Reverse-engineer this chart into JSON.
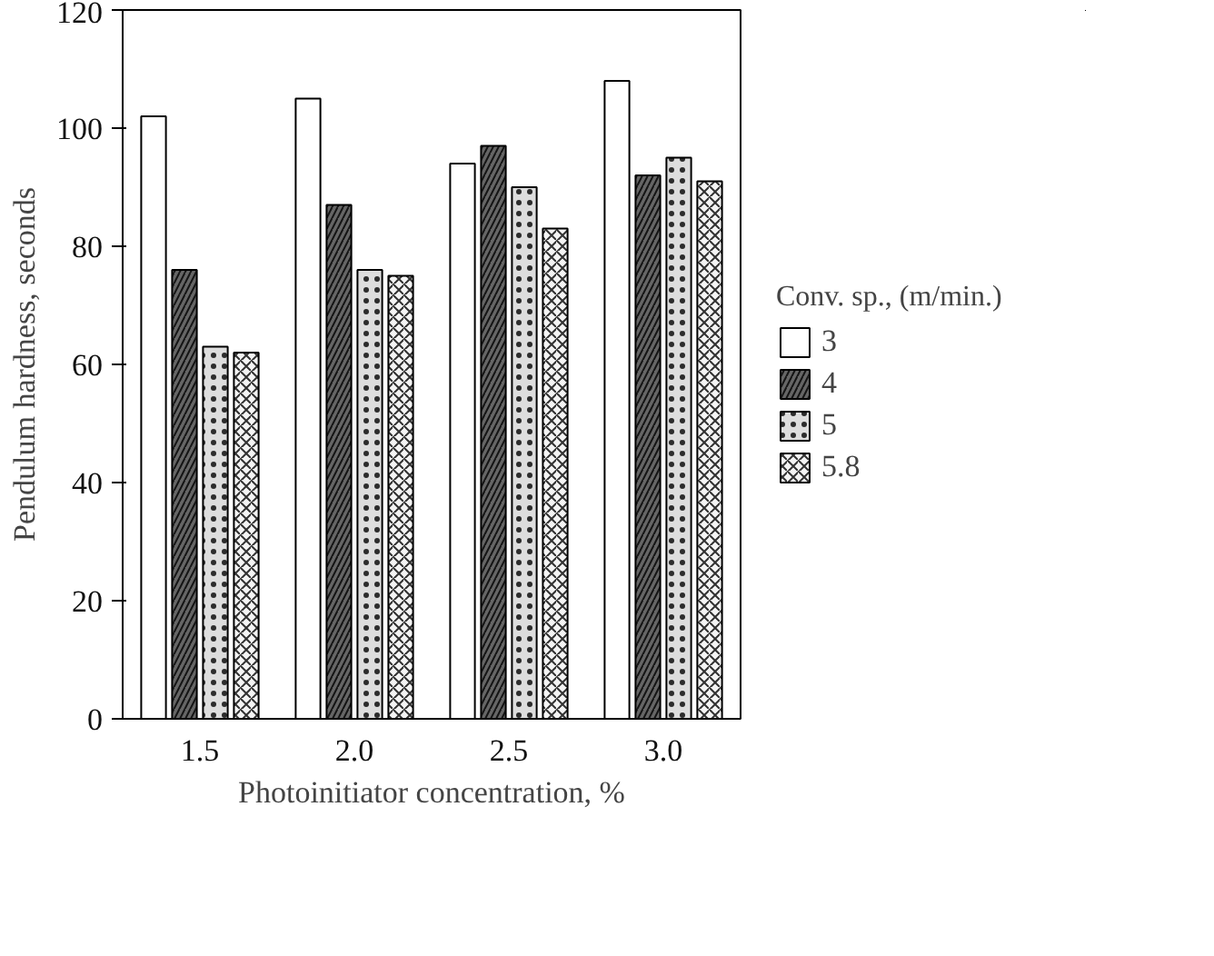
{
  "chart_data": {
    "type": "bar",
    "xlabel": "Photoinitiator concentration, %",
    "ylabel": "Pendulum hardness, seconds",
    "legend_title": "Conv. sp., (m/min.)",
    "categories": [
      "1.5",
      "2.0",
      "2.5",
      "3.0"
    ],
    "ylim": [
      0,
      120
    ],
    "yticks": [
      0,
      20,
      40,
      60,
      80,
      100,
      120
    ],
    "grid": false,
    "legend": "right",
    "series": [
      {
        "name": "3",
        "color": "#ffffff",
        "values": [
          102,
          105,
          94,
          108
        ]
      },
      {
        "name": "4",
        "color": "#666666",
        "values": [
          76,
          87,
          97,
          92
        ]
      },
      {
        "name": "5",
        "color": "#dddddd",
        "values": [
          63,
          76,
          90,
          95
        ]
      },
      {
        "name": "5.8",
        "color": "#f4f4f4",
        "values": [
          62,
          75,
          83,
          91
        ]
      }
    ]
  }
}
